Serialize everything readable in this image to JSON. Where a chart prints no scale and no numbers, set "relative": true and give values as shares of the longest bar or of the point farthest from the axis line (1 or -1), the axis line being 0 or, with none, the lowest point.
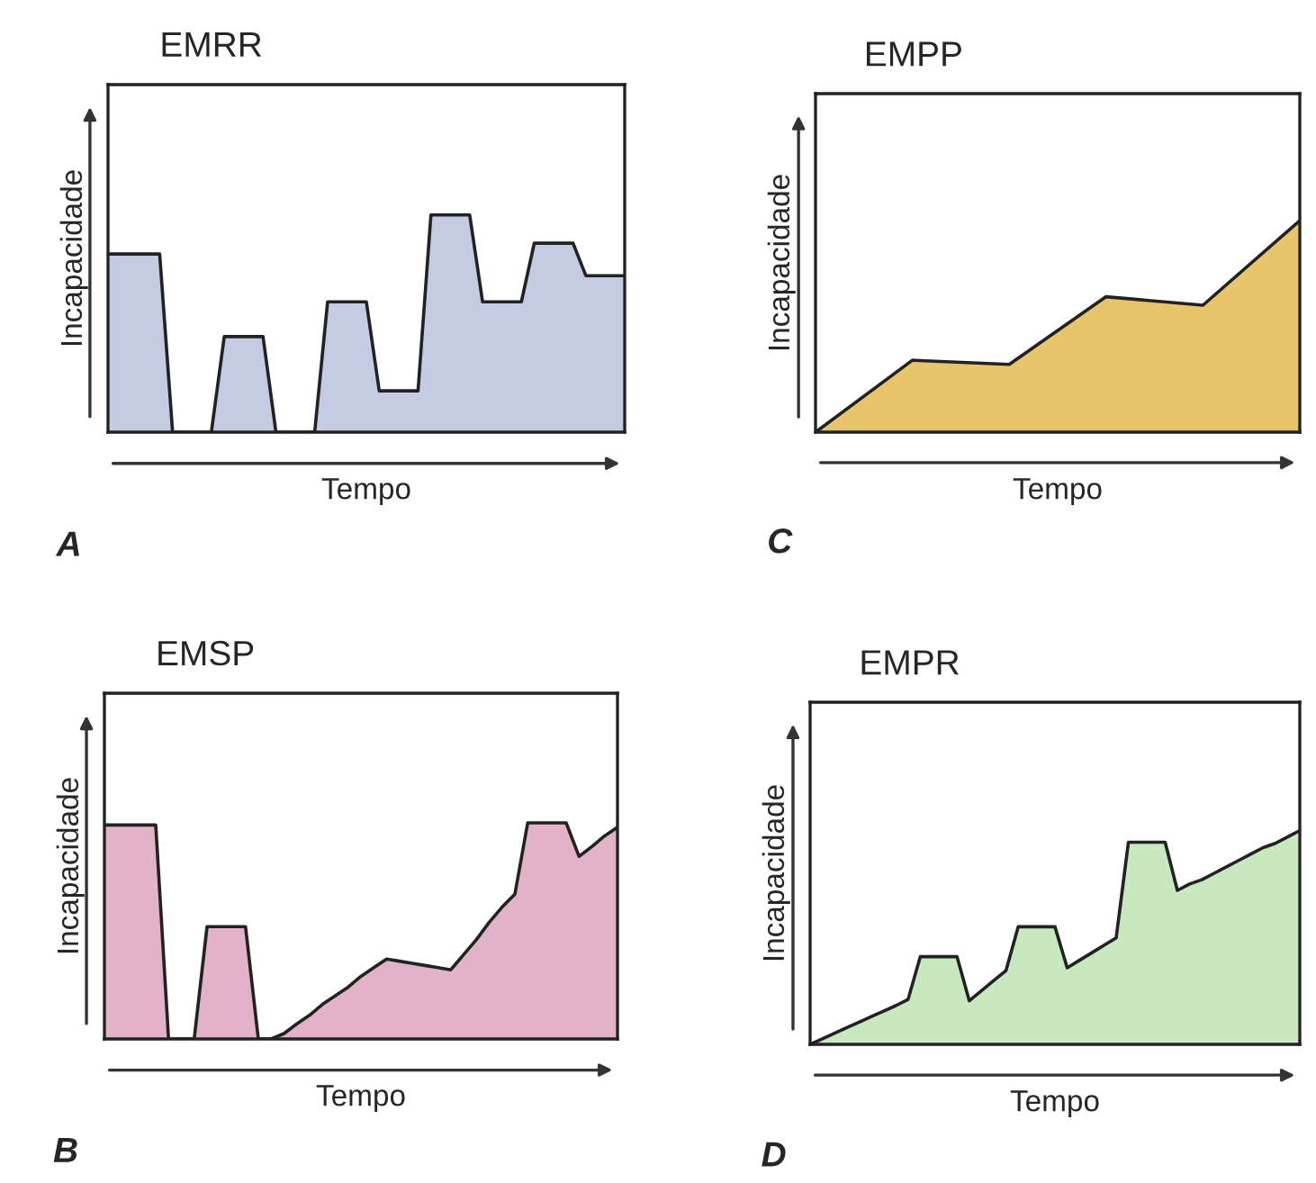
{
  "chart_data": [
    {
      "type": "area",
      "title": "EMRR",
      "xlabel": "Tempo",
      "ylabel": "Incapacidade",
      "relative": true,
      "annotations": [
        "A"
      ],
      "categories": [
        null,
        null,
        null,
        null,
        null,
        null,
        null,
        null,
        null,
        null,
        null,
        null,
        null,
        null,
        null,
        null,
        null,
        null,
        null,
        null,
        null,
        null,
        null,
        null,
        null,
        null,
        null,
        null,
        null,
        null,
        null,
        null,
        null,
        null,
        null,
        null,
        null,
        null,
        null,
        null,
        null
      ],
      "series": [
        {
          "color": "#c5cbe3",
          "values": [
            0.82,
            0.82,
            0.82,
            0.82,
            0.82,
            0,
            0,
            0,
            0,
            0.44,
            0.44,
            0.44,
            0.44,
            0,
            0,
            0,
            0,
            0.6,
            0.6,
            0.6,
            0.6,
            0.19,
            0.19,
            0.19,
            0.19,
            1,
            1,
            1,
            1,
            0.6,
            0.6,
            0.6,
            0.6,
            0.87,
            0.87,
            0.87,
            0.87,
            0.72,
            0.72,
            0.72,
            0.72
          ]
        }
      ]
    },
    {
      "type": "area",
      "title": "EMPP",
      "xlabel": "Tempo",
      "ylabel": "Incapacidade",
      "relative": true,
      "annotations": [
        "C"
      ],
      "categories": [
        null,
        null,
        null,
        null,
        null,
        null
      ],
      "series": [
        {
          "color": "#e8c46a",
          "values": [
            0,
            0.34,
            0.32,
            0.64,
            0.6,
            1
          ]
        }
      ]
    },
    {
      "type": "area",
      "title": "EMSP",
      "xlabel": "Tempo",
      "ylabel": "Incapacidade",
      "relative": true,
      "annotations": [
        "B"
      ],
      "categories": [
        null,
        null,
        null,
        null,
        null,
        null,
        null,
        null,
        null,
        null,
        null,
        null,
        null,
        null,
        null,
        null,
        null,
        null,
        null,
        null,
        null,
        null,
        null,
        null,
        null,
        null,
        null,
        null,
        null,
        null,
        null,
        null,
        null,
        null,
        null,
        null,
        null,
        null,
        null,
        null,
        null
      ],
      "series": [
        {
          "color": "#e2b3c8",
          "values": [
            0.99,
            0.99,
            0.99,
            0.99,
            0.99,
            0,
            0,
            0,
            0.52,
            0.52,
            0.52,
            0.52,
            0,
            0,
            0.025,
            0.07,
            0.11,
            0.16,
            0.2,
            0.24,
            0.29,
            0.33,
            0.37,
            0.36,
            0.35,
            0.34,
            0.33,
            0.32,
            0.39,
            0.46,
            0.54,
            0.61,
            0.67,
            1,
            1,
            1,
            1,
            0.845,
            0.89,
            0.94,
            0.98
          ]
        }
      ]
    },
    {
      "type": "area",
      "title": "EMPR",
      "xlabel": "Tempo",
      "ylabel": "Incapacidade",
      "relative": true,
      "annotations": [
        "D"
      ],
      "categories": [
        null,
        null,
        null,
        null,
        null,
        null,
        null,
        null,
        null,
        null,
        null,
        null,
        null,
        null,
        null,
        null,
        null,
        null,
        null,
        null,
        null,
        null,
        null,
        null,
        null,
        null,
        null,
        null,
        null,
        null,
        null,
        null,
        null,
        null,
        null,
        null,
        null,
        null,
        null,
        null,
        null
      ],
      "series": [
        {
          "color": "#c8e8c0",
          "values": [
            0,
            0.026,
            0.052,
            0.078,
            0.104,
            0.13,
            0.155,
            0.181,
            0.21,
            0.41,
            0.41,
            0.41,
            0.41,
            0.204,
            0.251,
            0.298,
            0.345,
            0.55,
            0.55,
            0.55,
            0.55,
            0.358,
            0.393,
            0.428,
            0.463,
            0.498,
            0.945,
            0.945,
            0.945,
            0.945,
            0.72,
            0.75,
            0.77,
            0.8,
            0.83,
            0.86,
            0.89,
            0.92,
            0.94,
            0.97,
            1
          ]
        }
      ]
    }
  ]
}
